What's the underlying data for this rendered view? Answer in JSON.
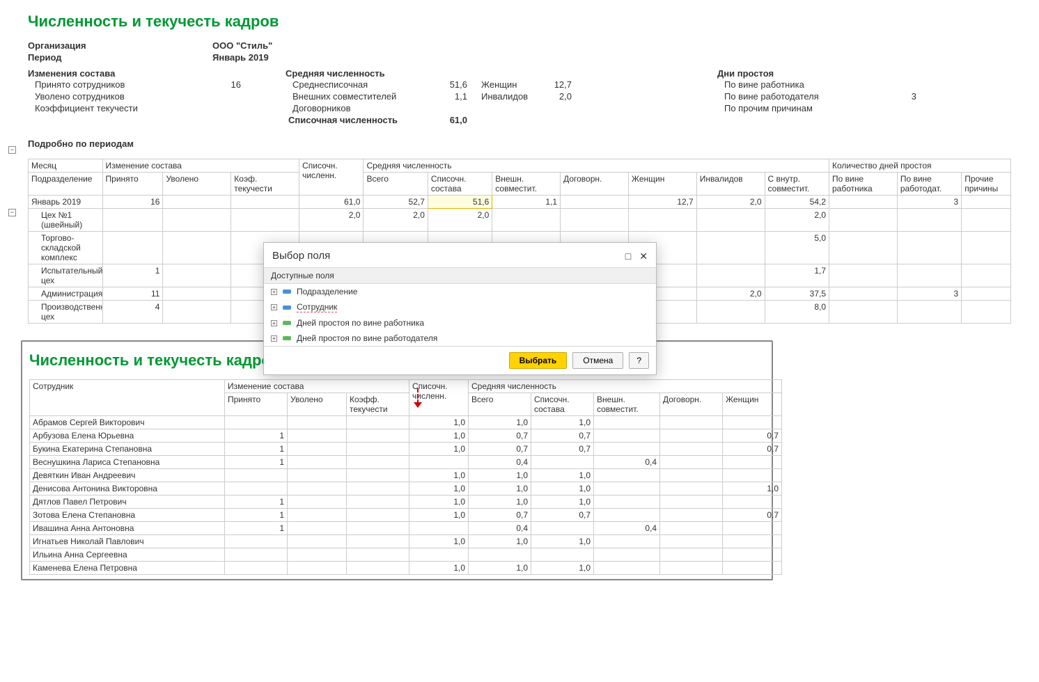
{
  "report1": {
    "title": "Численность и текучесть кадров",
    "org_label": "Организация",
    "org_value": "ООО \"Стиль\"",
    "period_label": "Период",
    "period_value": "Январь 2019",
    "changes_hdr": "Изменения состава",
    "hired_label": "Принято сотрудников",
    "hired_value": "16",
    "fired_label": "Уволено сотрудников",
    "fired_value": "",
    "turnover_label": "Коэффициент текучести",
    "turnover_value": "",
    "avg_hdr": "Средняя численность",
    "avg_list_label": "Среднесписочная",
    "avg_list_value": "51,6",
    "avg_ext_label": "Внешних совместителей",
    "avg_ext_value": "1,1",
    "avg_contr_label": "Договорников",
    "avg_contr_value": "",
    "list_cnt_label": "Списочная численность",
    "list_cnt_value": "61,0",
    "women_label": "Женщин",
    "women_value": "12,7",
    "disab_label": "Инвалидов",
    "disab_value": "2,0",
    "idle_hdr": "Дни простоя",
    "idle_emp_label": "По вине работника",
    "idle_emp_value": "",
    "idle_org_label": "По вине работодателя",
    "idle_org_value": "3",
    "idle_oth_label": "По прочим причинам",
    "idle_oth_value": "",
    "detail_hdr": "Подробно по периодам",
    "colors": {
      "title": "#009933",
      "border": "#cccccc",
      "highlight_bg": "#fffde0",
      "highlight_border": "#e0b000"
    },
    "columns": {
      "month": "Месяц",
      "change": "Изменение состава",
      "dept": "Подразделение",
      "hired": "Принято",
      "fired": "Уволено",
      "coef": "Коэф. текучести",
      "list": "Списочн. численн.",
      "avg": "Средняя численность",
      "total": "Всего",
      "list2": "Списочн. состава",
      "ext": "Внешн. совместит.",
      "contr": "Договорн.",
      "women": "Женщин",
      "disab": "Инвалидов",
      "innerc": "С внутр. совместит.",
      "idle_days": "Количество дней простоя",
      "idle_emp": "По вине работника",
      "idle_org": "По вине работодат.",
      "idle_oth": "Прочие причины"
    },
    "rows": [
      {
        "name": "Январь 2019",
        "hired": "16",
        "fired": "",
        "coef": "",
        "list": "61,0",
        "total": "52,7",
        "list2": "51,6",
        "ext": "1,1",
        "contr": "",
        "women": "12,7",
        "disab": "2,0",
        "innerc": "54,2",
        "idle_emp": "",
        "idle_org": "3",
        "idle_oth": "",
        "level": 0,
        "highlight_list2": true
      },
      {
        "name": "Цех №1 (швейный)",
        "hired": "",
        "fired": "",
        "coef": "",
        "list": "2,0",
        "total": "2,0",
        "list2": "2,0",
        "ext": "",
        "contr": "",
        "women": "",
        "disab": "",
        "innerc": "2,0",
        "idle_emp": "",
        "idle_org": "",
        "idle_oth": "",
        "level": 1
      },
      {
        "name": "Торгово-складской комплекс",
        "hired": "",
        "fired": "",
        "coef": "",
        "list": "",
        "total": "",
        "list2": "",
        "ext": "",
        "contr": "",
        "women": "",
        "disab": "",
        "innerc": "5,0",
        "idle_emp": "",
        "idle_org": "",
        "idle_oth": "",
        "level": 1
      },
      {
        "name": "Испытательный цех",
        "hired": "1",
        "fired": "",
        "coef": "",
        "list": "",
        "total": "",
        "list2": "",
        "ext": "",
        "contr": "",
        "women": "",
        "disab": "",
        "innerc": "1,7",
        "idle_emp": "",
        "idle_org": "",
        "idle_oth": "",
        "level": 1
      },
      {
        "name": "Администрация",
        "hired": "11",
        "fired": "",
        "coef": "",
        "list": "",
        "total": "",
        "list2": "",
        "ext": "",
        "contr": "",
        "women": "",
        "disab": "2,0",
        "innerc": "37,5",
        "idle_emp": "",
        "idle_org": "3",
        "idle_oth": "",
        "level": 1
      },
      {
        "name": "Производственный цех",
        "hired": "4",
        "fired": "",
        "coef": "",
        "list": "",
        "total": "",
        "list2": "",
        "ext": "",
        "contr": "",
        "women": "",
        "disab": "",
        "innerc": "8,0",
        "idle_emp": "",
        "idle_org": "",
        "idle_oth": "",
        "level": 1
      }
    ]
  },
  "dialog": {
    "title": "Выбор поля",
    "group_header": "Доступные поля",
    "items": [
      {
        "label": "Подразделение",
        "icon": "blue",
        "expand": true
      },
      {
        "label": "Сотрудник",
        "icon": "blue",
        "expand": true,
        "redline": true
      },
      {
        "label": "Дней простоя по вине работника",
        "icon": "green",
        "expand": true
      },
      {
        "label": "Дней простоя по вине работодателя",
        "icon": "green",
        "expand": true
      }
    ],
    "select_btn": "Выбрать",
    "cancel_btn": "Отмена",
    "help_btn": "?",
    "maximize_tip": "□",
    "close_tip": "✕"
  },
  "report2": {
    "title": "Численность и текучесть кадров",
    "columns": {
      "emp": "Сотрудник",
      "change": "Изменение состава",
      "hired": "Принято",
      "fired": "Уволено",
      "coef": "Коэфф. текучести",
      "list": "Списочн. численн.",
      "avg": "Средняя численность",
      "total": "Всего",
      "list2": "Списочн. состава",
      "ext": "Внешн. совместит.",
      "contr": "Договорн.",
      "women": "Женщин"
    },
    "rows": [
      {
        "name": "Абрамов Сергей Викторович",
        "hired": "",
        "fired": "",
        "coef": "",
        "list": "1,0",
        "total": "1,0",
        "list2": "1,0",
        "ext": "",
        "contr": "",
        "women": ""
      },
      {
        "name": "Арбузова Елена Юрьевна",
        "hired": "1",
        "fired": "",
        "coef": "",
        "list": "1,0",
        "total": "0,7",
        "list2": "0,7",
        "ext": "",
        "contr": "",
        "women": "0,7"
      },
      {
        "name": "Букина Екатерина Степановна",
        "hired": "1",
        "fired": "",
        "coef": "",
        "list": "1,0",
        "total": "0,7",
        "list2": "0,7",
        "ext": "",
        "contr": "",
        "women": "0,7"
      },
      {
        "name": "Веснушкина Лариса Степановна",
        "hired": "1",
        "fired": "",
        "coef": "",
        "list": "",
        "total": "0,4",
        "list2": "",
        "ext": "0,4",
        "contr": "",
        "women": ""
      },
      {
        "name": "Девяткин Иван Андреевич",
        "hired": "",
        "fired": "",
        "coef": "",
        "list": "1,0",
        "total": "1,0",
        "list2": "1,0",
        "ext": "",
        "contr": "",
        "women": ""
      },
      {
        "name": "Денисова Антонина Викторовна",
        "hired": "",
        "fired": "",
        "coef": "",
        "list": "1,0",
        "total": "1,0",
        "list2": "1,0",
        "ext": "",
        "contr": "",
        "women": "1,0"
      },
      {
        "name": "Дятлов Павел Петрович",
        "hired": "1",
        "fired": "",
        "coef": "",
        "list": "1,0",
        "total": "1,0",
        "list2": "1,0",
        "ext": "",
        "contr": "",
        "women": ""
      },
      {
        "name": "Зотова Елена Степановна",
        "hired": "1",
        "fired": "",
        "coef": "",
        "list": "1,0",
        "total": "0,7",
        "list2": "0,7",
        "ext": "",
        "contr": "",
        "women": "0,7"
      },
      {
        "name": "Ивашина Анна Антоновна",
        "hired": "1",
        "fired": "",
        "coef": "",
        "list": "",
        "total": "0,4",
        "list2": "",
        "ext": "0,4",
        "contr": "",
        "women": ""
      },
      {
        "name": "Игнатьев Николай Павлович",
        "hired": "",
        "fired": "",
        "coef": "",
        "list": "1,0",
        "total": "1,0",
        "list2": "1,0",
        "ext": "",
        "contr": "",
        "women": ""
      },
      {
        "name": "Ильина Анна Сергеевна",
        "hired": "",
        "fired": "",
        "coef": "",
        "list": "",
        "total": "",
        "list2": "",
        "ext": "",
        "contr": "",
        "women": ""
      },
      {
        "name": "Каменева Елена Петровна",
        "hired": "",
        "fired": "",
        "coef": "",
        "list": "1,0",
        "total": "1,0",
        "list2": "1,0",
        "ext": "",
        "contr": "",
        "women": ""
      }
    ]
  }
}
